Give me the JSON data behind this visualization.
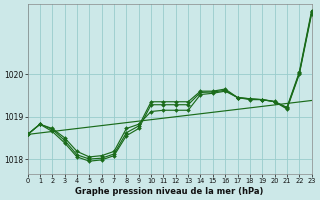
{
  "title": "Graphe pression niveau de la mer (hPa)",
  "bg_color": "#cce8e8",
  "grid_color": "#99cccc",
  "line_color": "#1a6b1a",
  "xlim": [
    0,
    23
  ],
  "ylim": [
    1017.65,
    1021.65
  ],
  "yticks": [
    1018,
    1019,
    1020
  ],
  "xticks": [
    0,
    1,
    2,
    3,
    4,
    5,
    6,
    7,
    8,
    9,
    10,
    11,
    12,
    13,
    14,
    15,
    16,
    17,
    18,
    19,
    20,
    21,
    22,
    23
  ],
  "diagonal": {
    "x": [
      0,
      23
    ],
    "y": [
      1018.58,
      1019.38
    ]
  },
  "s1": [
    1018.58,
    1018.82,
    1018.72,
    1018.5,
    1018.18,
    1018.05,
    1018.08,
    1018.18,
    1018.72,
    1018.82,
    1019.12,
    1019.15,
    1019.15,
    1019.15,
    1019.52,
    1019.55,
    1019.6,
    1019.45,
    1019.4,
    1019.4,
    1019.35,
    1019.22,
    1020.05,
    1021.5
  ],
  "s2": [
    1018.58,
    1018.82,
    1018.65,
    1018.38,
    1018.05,
    1017.95,
    1017.98,
    1018.08,
    1018.55,
    1018.72,
    1019.28,
    1019.28,
    1019.28,
    1019.28,
    1019.57,
    1019.58,
    1019.62,
    1019.45,
    1019.42,
    1019.4,
    1019.35,
    1019.18,
    1020.0,
    1021.42
  ],
  "s3": [
    1018.58,
    1018.82,
    1018.7,
    1018.44,
    1018.1,
    1018.0,
    1018.02,
    1018.12,
    1018.62,
    1018.78,
    1019.35,
    1019.35,
    1019.35,
    1019.35,
    1019.6,
    1019.6,
    1019.65,
    1019.45,
    1019.42,
    1019.4,
    1019.36,
    1019.2,
    1020.02,
    1021.46
  ]
}
